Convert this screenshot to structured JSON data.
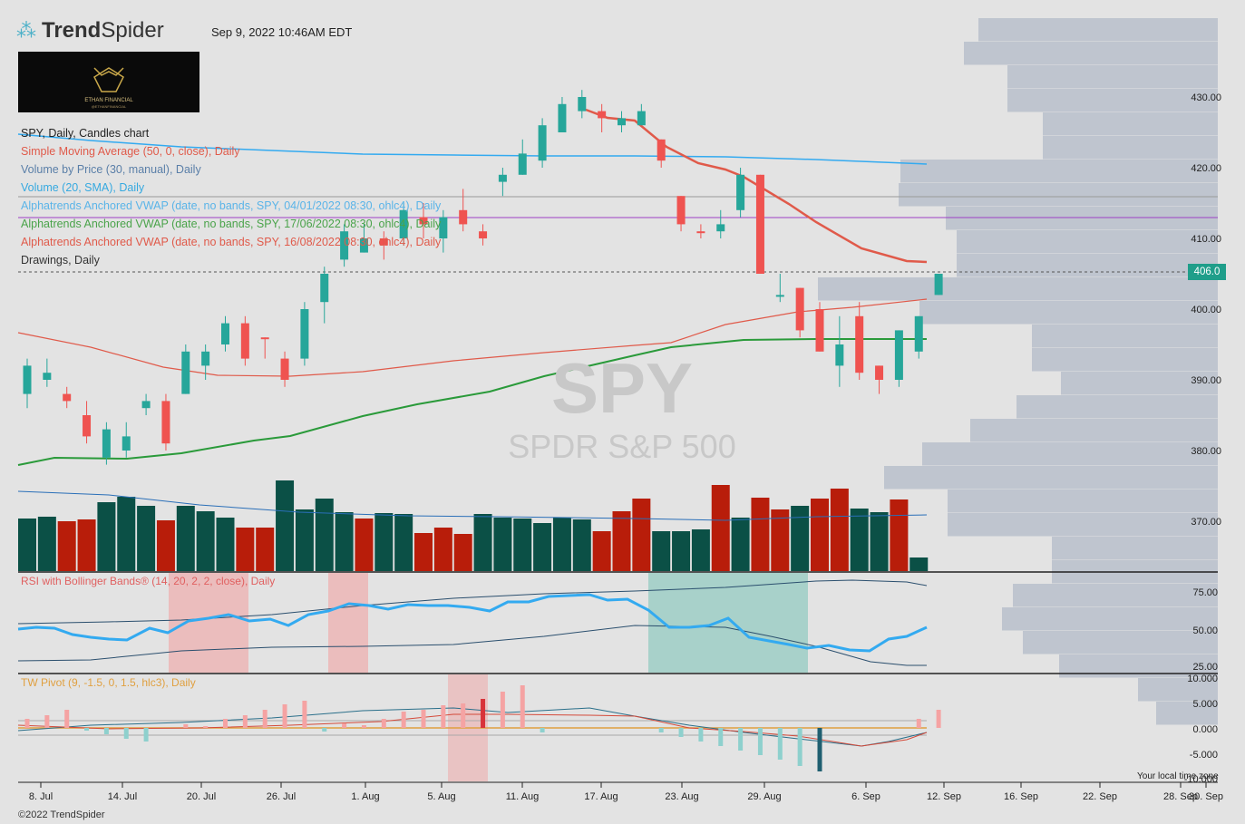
{
  "header": {
    "brand_prefix": "Trend",
    "brand_suffix": "Spider",
    "datetime": "Sep 9, 2022 10:46AM EDT",
    "logo_title": "ETHAN FINANCIAL",
    "logo_subtitle": "@ETHANFINANCIAL"
  },
  "legend": {
    "chart_title": "SPY, Daily, Candles chart",
    "items": [
      {
        "label": "Simple Moving Average (50, 0, close), Daily",
        "color": "#e05a4a"
      },
      {
        "label": "Volume by Price (30, manual), Daily",
        "color": "#5a7fa8"
      },
      {
        "label": "Volume (20, SMA), Daily",
        "color": "#36a9e0"
      },
      {
        "label": "Alphatrends Anchored VWAP (date, no bands, SPY, 04/01/2022 08:30, ohlc4), Daily",
        "color": "#5ab4e8"
      },
      {
        "label": "Alphatrends Anchored VWAP (date, no bands, SPY, 17/06/2022 08:30, ohlc4), Daily",
        "color": "#4aa34a"
      },
      {
        "label": "Alphatrends Anchored VWAP (date, no bands, SPY, 16/08/2022 08:30, ohlc4), Daily",
        "color": "#e05a4a"
      },
      {
        "label": "Drawings, Daily",
        "color": "#333333"
      }
    ]
  },
  "watermark": {
    "symbol": "SPY",
    "name": "SPDR S&P 500"
  },
  "price_axis": {
    "ticks": [
      "430.00",
      "420.00",
      "410.00",
      "400.00",
      "390.00",
      "380.00",
      "370.00"
    ],
    "current_price": "406.0"
  },
  "rsi_panel": {
    "title": "RSI with Bollinger Bands® (14, 20, 2, 2, close), Daily",
    "ticks": [
      "75.00",
      "50.00",
      "25.00"
    ]
  },
  "pivot_panel": {
    "title": "TW Pivot (9, -1.5, 0, 1.5, hlc3), Daily",
    "ticks": [
      "10.000",
      "5.000",
      "0.000",
      "-5.000",
      "-10.000"
    ]
  },
  "x_axis": {
    "labels": [
      "8. Jul",
      "14. Jul",
      "20. Jul",
      "26. Jul",
      "1. Aug",
      "5. Aug",
      "11. Aug",
      "17. Aug",
      "23. Aug",
      "29. Aug",
      "6. Sep",
      "12. Sep",
      "16. Sep",
      "22. Sep",
      "28. Sep",
      "30. Sep"
    ]
  },
  "timezone_note": "Your local time zone",
  "footer": "©2022 TrendSpider",
  "colors": {
    "up": "#26a69a",
    "down": "#ef5350",
    "vol_up": "#0b5046",
    "vol_down": "#b81d0a",
    "rsi_line": "#33aaf0",
    "vbp": "#bfc5cf"
  },
  "chart_data": {
    "type": "candlestick",
    "ylim": [
      362,
      434
    ],
    "candles": [
      [
        0,
        388,
        392,
        393,
        386,
        1
      ],
      [
        1,
        391,
        390,
        393,
        389,
        1
      ],
      [
        2,
        388,
        387,
        389,
        386,
        0
      ],
      [
        3,
        385,
        382,
        387,
        381,
        0
      ],
      [
        4,
        379,
        383,
        384,
        378,
        1
      ],
      [
        5,
        380,
        382,
        384,
        379,
        1
      ],
      [
        6,
        386,
        387,
        388,
        385,
        1
      ],
      [
        7,
        387,
        381,
        388,
        380,
        0
      ],
      [
        8,
        388,
        394,
        395,
        388,
        1
      ],
      [
        9,
        392,
        394,
        395,
        390,
        1
      ],
      [
        10,
        395,
        398,
        399,
        394,
        1
      ],
      [
        11,
        398,
        393,
        399,
        392,
        0
      ],
      [
        12,
        396,
        396,
        396,
        393,
        0
      ],
      [
        13,
        393,
        390,
        394,
        389,
        0
      ],
      [
        14,
        393,
        400,
        401,
        392,
        1
      ],
      [
        15,
        401,
        405,
        406,
        398,
        1
      ],
      [
        16,
        407,
        411,
        412,
        406,
        1
      ],
      [
        17,
        408,
        410,
        412,
        408,
        1
      ],
      [
        18,
        410,
        409,
        411,
        407,
        0
      ],
      [
        19,
        410,
        414,
        415,
        409,
        1
      ],
      [
        20,
        413,
        412,
        415,
        410,
        0
      ],
      [
        21,
        410,
        413,
        414,
        408,
        1
      ],
      [
        22,
        414,
        412,
        417,
        411,
        0
      ],
      [
        23,
        411,
        410,
        412,
        409,
        0
      ],
      [
        24,
        418,
        419,
        420,
        416,
        1
      ],
      [
        25,
        419,
        422,
        424,
        419,
        1
      ],
      [
        26,
        421,
        426,
        427,
        420,
        1
      ],
      [
        27,
        425,
        429,
        430,
        425,
        1
      ],
      [
        28,
        428,
        430,
        431,
        427,
        1
      ],
      [
        29,
        427,
        428,
        429,
        425,
        0
      ],
      [
        30,
        427,
        426,
        428,
        425,
        1
      ],
      [
        31,
        426,
        428,
        429,
        426,
        1
      ],
      [
        32,
        424,
        421,
        424,
        420,
        0
      ],
      [
        33,
        416,
        412,
        416,
        411,
        0
      ],
      [
        34,
        411,
        411,
        412,
        410,
        0
      ],
      [
        35,
        411,
        412,
        414,
        410,
        1
      ],
      [
        36,
        414,
        419,
        420,
        413,
        1
      ],
      [
        37,
        419,
        405,
        419,
        405,
        0
      ],
      [
        38,
        402,
        402,
        405,
        401,
        1
      ],
      [
        39,
        403,
        397,
        403,
        396,
        0
      ],
      [
        40,
        400,
        394,
        401,
        394,
        0
      ],
      [
        41,
        392,
        395,
        399,
        389,
        1
      ],
      [
        42,
        399,
        391,
        401,
        390,
        0
      ],
      [
        43,
        392,
        390,
        392,
        388,
        0
      ],
      [
        44,
        390,
        397,
        397,
        389,
        1
      ],
      [
        45,
        394,
        399,
        399,
        393,
        1
      ],
      [
        46,
        402,
        405,
        405,
        402,
        1
      ]
    ]
  }
}
